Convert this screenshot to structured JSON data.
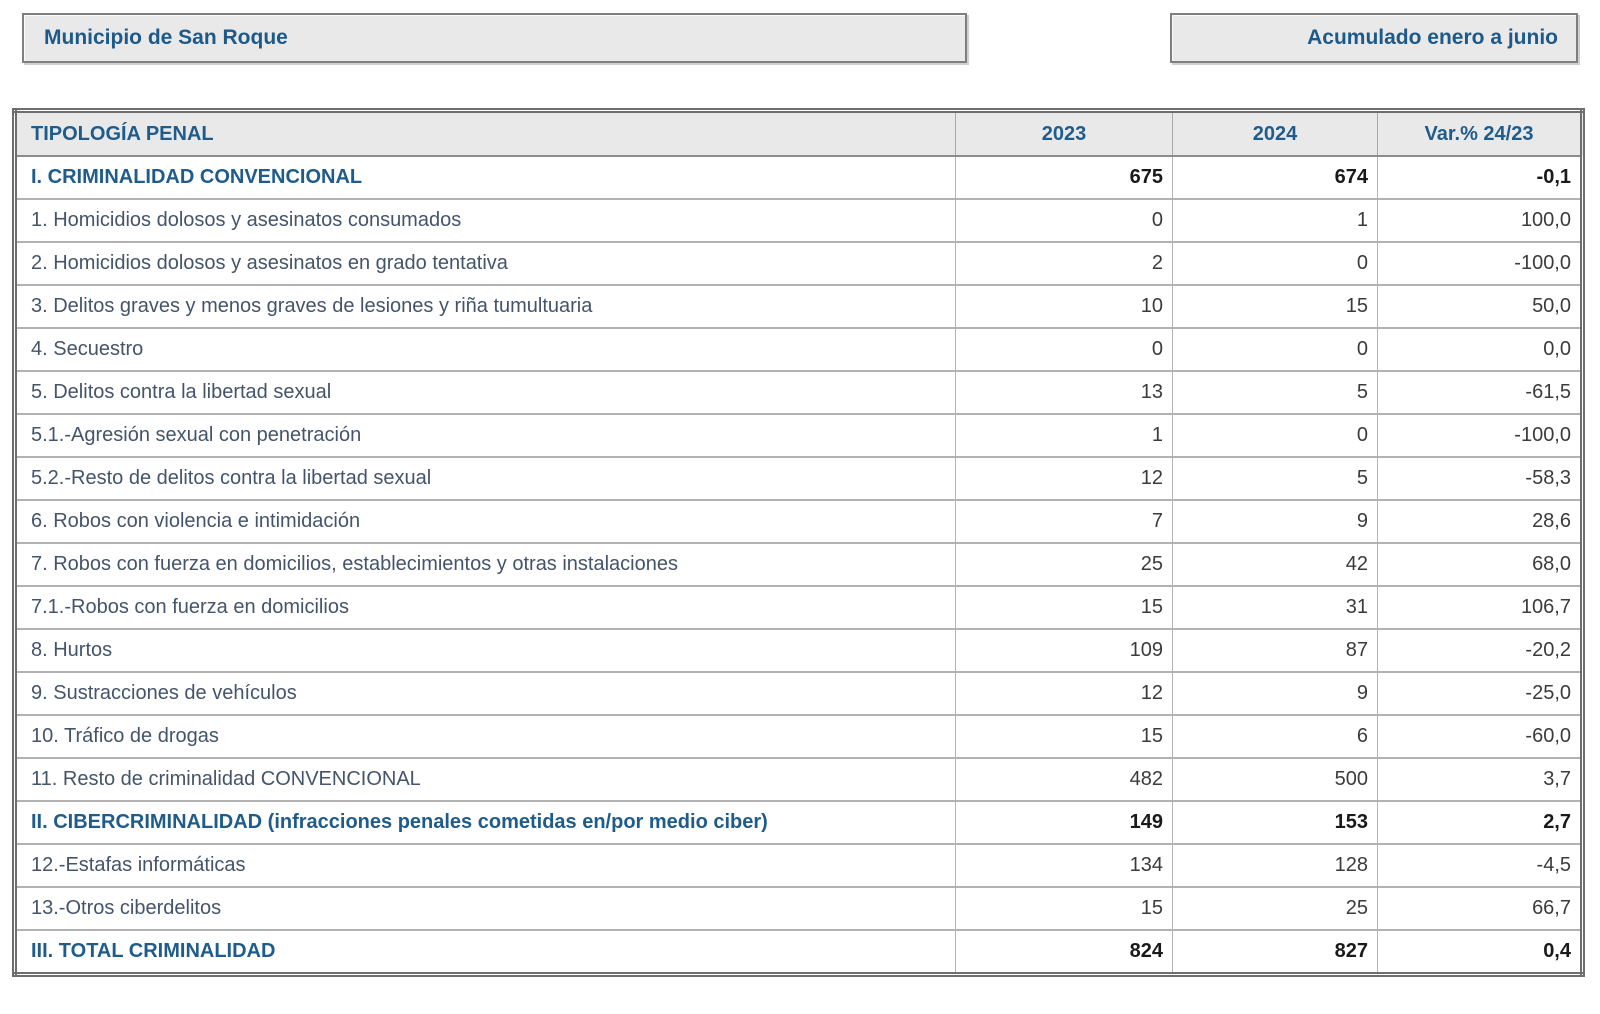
{
  "header": {
    "municipality": "Municipio de San Roque",
    "period": "Acumulado enero a junio"
  },
  "table": {
    "columns": {
      "tipologia": "TIPOLOGÍA PENAL",
      "y2023": "2023",
      "y2024": "2024",
      "variation": "Var.% 24/23"
    },
    "rows": [
      {
        "label": "I. CRIMINALIDAD CONVENCIONAL",
        "y2023": "675",
        "y2024": "674",
        "var": "-0,1",
        "section": true
      },
      {
        "label": "1. Homicidios dolosos y asesinatos consumados",
        "y2023": "0",
        "y2024": "1",
        "var": "100,0",
        "section": false
      },
      {
        "label": "2. Homicidios dolosos y asesinatos en grado tentativa",
        "y2023": "2",
        "y2024": "0",
        "var": "-100,0",
        "section": false
      },
      {
        "label": "3. Delitos graves y menos graves de lesiones y riña tumultuaria",
        "y2023": "10",
        "y2024": "15",
        "var": "50,0",
        "section": false
      },
      {
        "label": "4. Secuestro",
        "y2023": "0",
        "y2024": "0",
        "var": "0,0",
        "section": false
      },
      {
        "label": "5. Delitos contra la libertad sexual",
        "y2023": "13",
        "y2024": "5",
        "var": "-61,5",
        "section": false
      },
      {
        "label": "5.1.-Agresión sexual con penetración",
        "y2023": "1",
        "y2024": "0",
        "var": "-100,0",
        "section": false
      },
      {
        "label": "5.2.-Resto de delitos contra la libertad sexual",
        "y2023": "12",
        "y2024": "5",
        "var": "-58,3",
        "section": false
      },
      {
        "label": "6. Robos con violencia e intimidación",
        "y2023": "7",
        "y2024": "9",
        "var": "28,6",
        "section": false
      },
      {
        "label": "7. Robos con fuerza en domicilios, establecimientos y otras instalaciones",
        "y2023": "25",
        "y2024": "42",
        "var": "68,0",
        "section": false
      },
      {
        "label": "7.1.-Robos con fuerza en domicilios",
        "y2023": "15",
        "y2024": "31",
        "var": "106,7",
        "section": false
      },
      {
        "label": "8. Hurtos",
        "y2023": "109",
        "y2024": "87",
        "var": "-20,2",
        "section": false
      },
      {
        "label": "9. Sustracciones de vehículos",
        "y2023": "12",
        "y2024": "9",
        "var": "-25,0",
        "section": false
      },
      {
        "label": "10. Tráfico de drogas",
        "y2023": "15",
        "y2024": "6",
        "var": "-60,0",
        "section": false
      },
      {
        "label": "11. Resto de criminalidad CONVENCIONAL",
        "y2023": "482",
        "y2024": "500",
        "var": "3,7",
        "section": false
      },
      {
        "label": "II. CIBERCRIMINALIDAD (infracciones penales cometidas en/por medio ciber)",
        "y2023": "149",
        "y2024": "153",
        "var": "2,7",
        "section": true
      },
      {
        "label": "12.-Estafas informáticas",
        "y2023": "134",
        "y2024": "128",
        "var": "-4,5",
        "section": false
      },
      {
        "label": "13.-Otros ciberdelitos",
        "y2023": "15",
        "y2024": "25",
        "var": "66,7",
        "section": false
      },
      {
        "label": "III. TOTAL CRIMINALIDAD",
        "y2023": "824",
        "y2024": "827",
        "var": "0,4",
        "section": true
      }
    ]
  },
  "colors": {
    "accent_blue": "#1f5c8b",
    "label_slate": "#44546a",
    "number_dark": "#3b3b3b",
    "header_fill": "#e9e9e9",
    "border_outer": "#6e6e6e",
    "border_inner": "#b2b2b2"
  }
}
